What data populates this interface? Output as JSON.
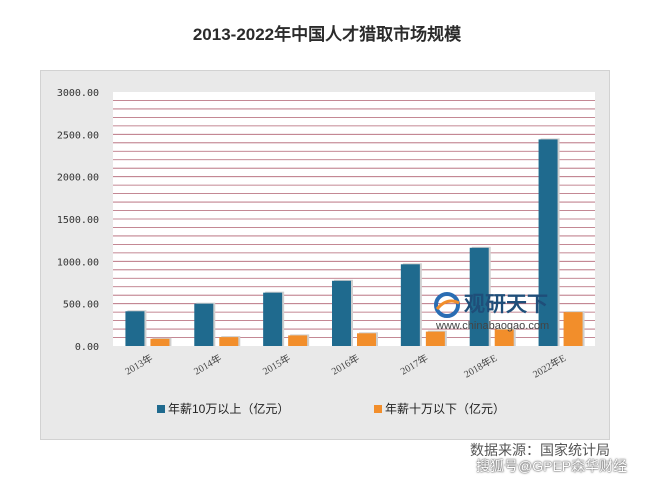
{
  "title": "2013-2022年中国人才猎取市场规模",
  "source": "数据来源：国家统计局",
  "overlay_watermark": "搜狐号@GPEP森华财经",
  "logo": {
    "name": "观研天下",
    "url": "www.chinabaogao.com"
  },
  "colors": {
    "series1": "#1f6a8e",
    "series2": "#f28e2b",
    "plot_bg": "#ffffff",
    "grid": "#b06070",
    "frame": "#e9e9e9"
  },
  "chart_data": {
    "type": "bar",
    "title": "2013-2022年中国人才猎取市场规模",
    "categories": [
      "2013年",
      "2014年",
      "2015年",
      "2016年",
      "2017年",
      "2018年E",
      "2022年E"
    ],
    "series": [
      {
        "name": "年薪10万以上（亿元）",
        "values": [
          410,
          500,
          630,
          770,
          965,
          1160,
          2440
        ]
      },
      {
        "name": "年薪十万以下（亿元）",
        "values": [
          85,
          105,
          125,
          150,
          170,
          195,
          400
        ]
      }
    ],
    "yticks": [
      "0.00",
      "500.00",
      "1000.00",
      "1500.00",
      "2000.00",
      "2500.00",
      "3000.00"
    ],
    "ylim": [
      0,
      3000
    ],
    "grid": true,
    "legend_position": "bottom"
  }
}
